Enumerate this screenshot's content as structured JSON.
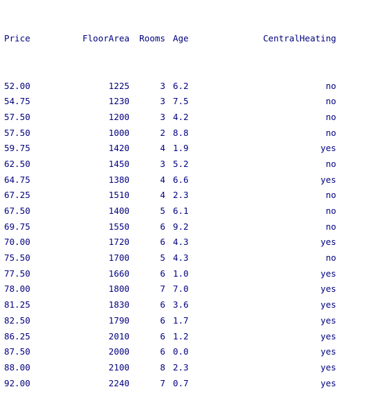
{
  "output": {
    "columns": [
      "Price",
      "FloorArea",
      "Rooms",
      "Age",
      "CentralHeating"
    ],
    "rows": [
      [
        "52.00",
        "1225",
        "3",
        "6.2",
        "no"
      ],
      [
        "54.75",
        "1230",
        "3",
        "7.5",
        "no"
      ],
      [
        "57.50",
        "1200",
        "3",
        "4.2",
        "no"
      ],
      [
        "57.50",
        "1000",
        "2",
        "8.8",
        "no"
      ],
      [
        "59.75",
        "1420",
        "4",
        "1.9",
        "yes"
      ],
      [
        "62.50",
        "1450",
        "3",
        "5.2",
        "no"
      ],
      [
        "64.75",
        "1380",
        "4",
        "6.6",
        "yes"
      ],
      [
        "67.25",
        "1510",
        "4",
        "2.3",
        "no"
      ],
      [
        "67.50",
        "1400",
        "5",
        "6.1",
        "no"
      ],
      [
        "69.75",
        "1550",
        "6",
        "9.2",
        "no"
      ],
      [
        "70.00",
        "1720",
        "6",
        "4.3",
        "yes"
      ],
      [
        "75.50",
        "1700",
        "5",
        "4.3",
        "no"
      ],
      [
        "77.50",
        "1660",
        "6",
        "1.0",
        "yes"
      ],
      [
        "78.00",
        "1800",
        "7",
        "7.0",
        "yes"
      ],
      [
        "81.25",
        "1830",
        "6",
        "3.6",
        "yes"
      ],
      [
        "82.50",
        "1790",
        "6",
        "1.7",
        "yes"
      ],
      [
        "86.25",
        "2010",
        "6",
        "1.2",
        "yes"
      ],
      [
        "87.50",
        "2000",
        "6",
        "0.0",
        "yes"
      ],
      [
        "88.00",
        "2100",
        "8",
        "2.3",
        "yes"
      ],
      [
        "92.00",
        "2240",
        "7",
        "0.7",
        "yes"
      ]
    ],
    "text_color": "#000080"
  }
}
